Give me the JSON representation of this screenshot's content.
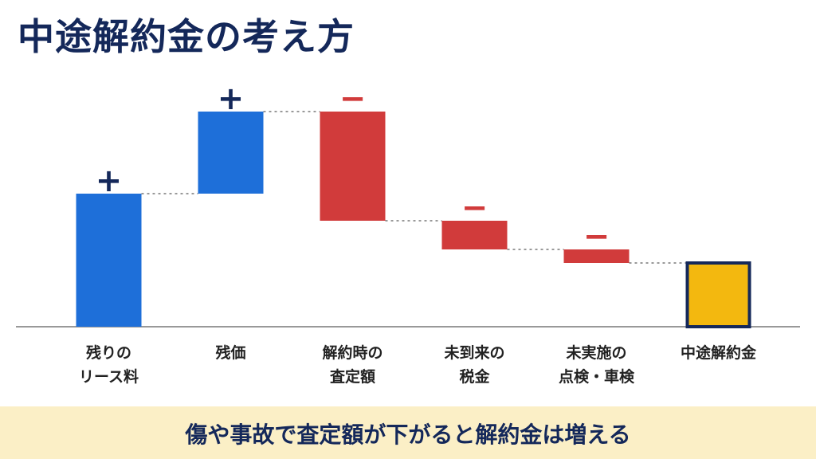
{
  "chart_data": {
    "type": "waterfall",
    "title": "中途解約金の考え方",
    "categories": [
      "残りの\nリース料",
      "残価",
      "解約時の\n査定額",
      "未到来の\n税金",
      "未実施の\n点検・車検",
      "中途解約金"
    ],
    "values": [
      167,
      103,
      -137,
      -36,
      -17,
      80
    ],
    "measures": [
      "relative",
      "relative",
      "relative",
      "relative",
      "relative",
      "total"
    ],
    "colors": [
      "#1e6fd9",
      "#1e6fd9",
      "#d13b3b",
      "#d13b3b",
      "#d13b3b",
      "#f3b80f"
    ],
    "annotations": [
      "+",
      "+",
      "−",
      "−",
      "−",
      null
    ],
    "ylim": [
      0,
      300
    ],
    "footer": "傷や事故で査定額が下がると解約金は増える"
  }
}
